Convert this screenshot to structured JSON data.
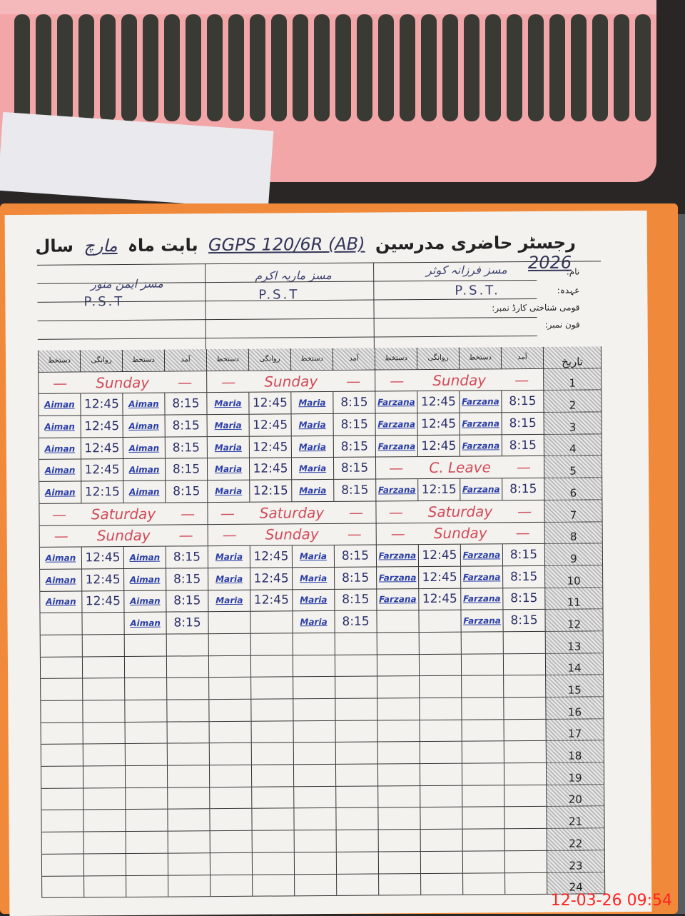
{
  "register": {
    "title": "رجسٹر حاضری مدرسین",
    "school": "GGPS 120/6R (AB)",
    "month_label": "بابت ماہ",
    "month": "مارچ",
    "year_label": "سال",
    "year": "2026",
    "labels": {
      "name": "نام:",
      "designation": "عہدہ:",
      "cnic": "قومی شناختی کارڈ نمبر:",
      "phone": "فون نمبر:"
    },
    "teachers": [
      {
        "name": "مسز فرزانہ کوثر",
        "designation": "P.S.T."
      },
      {
        "name": "مسز ماریہ اکرم",
        "designation": "P.S.T"
      },
      {
        "name": "مسز ایمن منور",
        "designation": "P.S.T"
      }
    ],
    "column_headers": [
      "آمد",
      "دستخط",
      "روانگی",
      "دستخط"
    ],
    "date_header": "تاریخ",
    "rows": [
      {
        "date": "1",
        "entries": [
          {
            "note": "Sunday"
          },
          {
            "note": "Sunday"
          },
          {
            "note": "Sunday"
          }
        ]
      },
      {
        "date": "2",
        "entries": [
          {
            "in": "8:15",
            "in_sig": "Farzana",
            "out": "12:45",
            "out_sig": "Farzana"
          },
          {
            "in": "8:15",
            "in_sig": "Maria",
            "out": "12:45",
            "out_sig": "Maria"
          },
          {
            "in": "8:15",
            "in_sig": "Aiman",
            "out": "12:45",
            "out_sig": "Aiman"
          }
        ]
      },
      {
        "date": "3",
        "entries": [
          {
            "in": "8:15",
            "in_sig": "Farzana",
            "out": "12:45",
            "out_sig": "Farzana"
          },
          {
            "in": "8:15",
            "in_sig": "Maria",
            "out": "12:45",
            "out_sig": "Maria"
          },
          {
            "in": "8:15",
            "in_sig": "Aiman",
            "out": "12:45",
            "out_sig": "Aiman"
          }
        ]
      },
      {
        "date": "4",
        "entries": [
          {
            "in": "8:15",
            "in_sig": "Farzana",
            "out": "12:45",
            "out_sig": "Farzana"
          },
          {
            "in": "8:15",
            "in_sig": "Maria",
            "out": "12:45",
            "out_sig": "Maria"
          },
          {
            "in": "8:15",
            "in_sig": "Aiman",
            "out": "12:45",
            "out_sig": "Aiman"
          }
        ]
      },
      {
        "date": "5",
        "entries": [
          {
            "note": "C. Leave"
          },
          {
            "in": "8:15",
            "in_sig": "Maria",
            "out": "12:45",
            "out_sig": "Maria"
          },
          {
            "in": "8:15",
            "in_sig": "Aiman",
            "out": "12:45",
            "out_sig": "Aiman"
          }
        ]
      },
      {
        "date": "6",
        "entries": [
          {
            "in": "8:15",
            "in_sig": "Farzana",
            "out": "12:15",
            "out_sig": "Farzana"
          },
          {
            "in": "8:15",
            "in_sig": "Maria",
            "out": "12:15",
            "out_sig": "Maria"
          },
          {
            "in": "8:15",
            "in_sig": "Aiman",
            "out": "12:15",
            "out_sig": "Aiman"
          }
        ]
      },
      {
        "date": "7",
        "entries": [
          {
            "note": "Saturday"
          },
          {
            "note": "Saturday"
          },
          {
            "note": "Saturday"
          }
        ]
      },
      {
        "date": "8",
        "entries": [
          {
            "note": "Sunday"
          },
          {
            "note": "Sunday"
          },
          {
            "note": "Sunday"
          }
        ]
      },
      {
        "date": "9",
        "entries": [
          {
            "in": "8:15",
            "in_sig": "Farzana",
            "out": "12:45",
            "out_sig": "Farzana"
          },
          {
            "in": "8:15",
            "in_sig": "Maria",
            "out": "12:45",
            "out_sig": "Maria"
          },
          {
            "in": "8:15",
            "in_sig": "Aiman",
            "out": "12:45",
            "out_sig": "Aiman"
          }
        ]
      },
      {
        "date": "10",
        "entries": [
          {
            "in": "8:15",
            "in_sig": "Farzana",
            "out": "12:45",
            "out_sig": "Farzana"
          },
          {
            "in": "8:15",
            "in_sig": "Maria",
            "out": "12:45",
            "out_sig": "Maria"
          },
          {
            "in": "8:15",
            "in_sig": "Aiman",
            "out": "12:45",
            "out_sig": "Aiman"
          }
        ]
      },
      {
        "date": "11",
        "entries": [
          {
            "in": "8:15",
            "in_sig": "Farzana",
            "out": "12:45",
            "out_sig": "Farzana"
          },
          {
            "in": "8:15",
            "in_sig": "Maria",
            "out": "12:45",
            "out_sig": "Maria"
          },
          {
            "in": "8:15",
            "in_sig": "Aiman",
            "out": "12:45",
            "out_sig": "Aiman"
          }
        ]
      },
      {
        "date": "12",
        "entries": [
          {
            "in": "8:15",
            "in_sig": "Farzana"
          },
          {
            "in": "8:15",
            "in_sig": "Maria"
          },
          {
            "in": "8:15",
            "in_sig": "Aiman"
          }
        ]
      },
      {
        "date": "13",
        "entries": [
          {},
          {},
          {}
        ]
      },
      {
        "date": "14",
        "entries": [
          {},
          {},
          {}
        ]
      },
      {
        "date": "15",
        "entries": [
          {},
          {},
          {}
        ]
      },
      {
        "date": "16",
        "entries": [
          {},
          {},
          {}
        ]
      },
      {
        "date": "17",
        "entries": [
          {},
          {},
          {}
        ]
      },
      {
        "date": "18",
        "entries": [
          {},
          {},
          {}
        ]
      },
      {
        "date": "19",
        "entries": [
          {},
          {},
          {}
        ]
      },
      {
        "date": "20",
        "entries": [
          {},
          {},
          {}
        ]
      },
      {
        "date": "21",
        "entries": [
          {},
          {},
          {}
        ]
      },
      {
        "date": "22",
        "entries": [
          {},
          {},
          {}
        ]
      },
      {
        "date": "23",
        "entries": [
          {},
          {},
          {}
        ]
      },
      {
        "date": "24",
        "entries": [
          {},
          {},
          {}
        ]
      }
    ]
  },
  "camera_timestamp": "12-03-26  09:54",
  "colors": {
    "basket": "#f3a6a8",
    "cover": "#f08a3a",
    "ink_blue": "#2b3fa8",
    "ink_red": "#d14a5a",
    "timestamp": "#ff2222"
  }
}
